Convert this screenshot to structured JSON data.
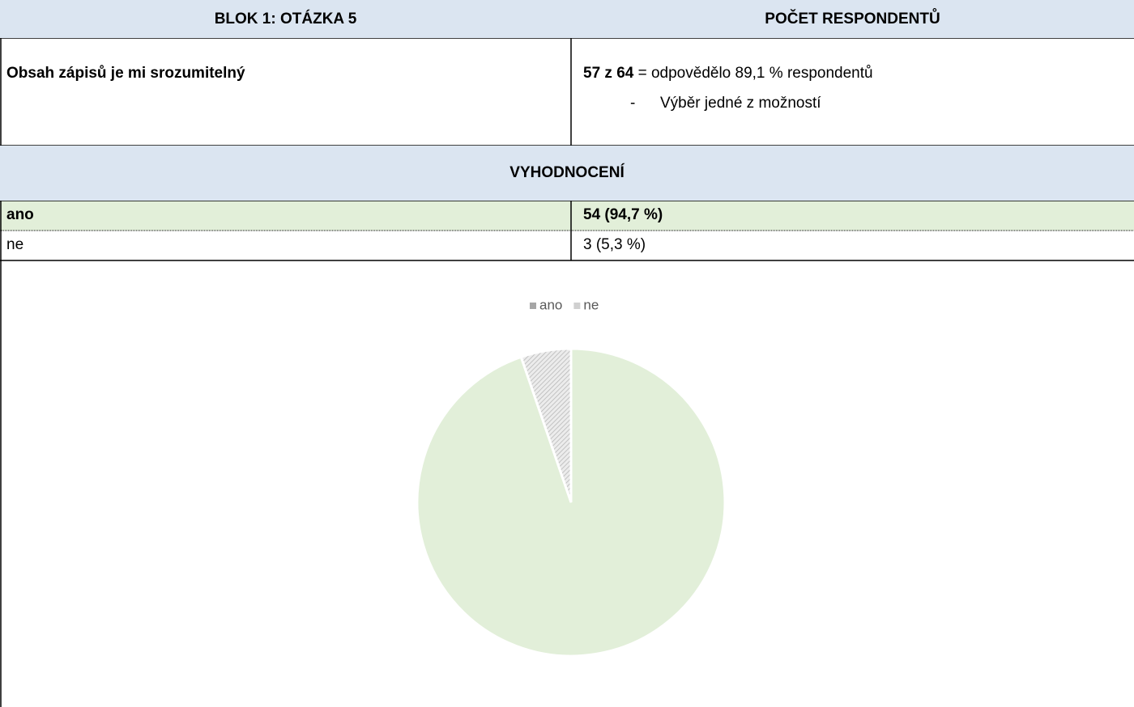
{
  "table": {
    "header": [
      "BLOK 1: OTÁZKA 5",
      "POČET RESPONDENTŮ"
    ],
    "question": "Obsah zápisů je mi srozumitelný",
    "count_bold": "57 z 64",
    "count_rest": "= odpovědělo 89,1 % respondentů",
    "bullet": "-",
    "note": "Výběr jedné z možností",
    "section": "VYHODNOCENÍ",
    "rows": [
      [
        "ano",
        "54 (94,7 %)"
      ],
      [
        "ne",
        "3 (5,3 %)"
      ]
    ]
  },
  "chart_data": {
    "type": "pie",
    "categories": [
      "ano",
      "ne"
    ],
    "values": [
      54,
      3
    ],
    "colors": [
      "#e2efd9",
      "#d9d9d9"
    ],
    "legend": "top"
  }
}
